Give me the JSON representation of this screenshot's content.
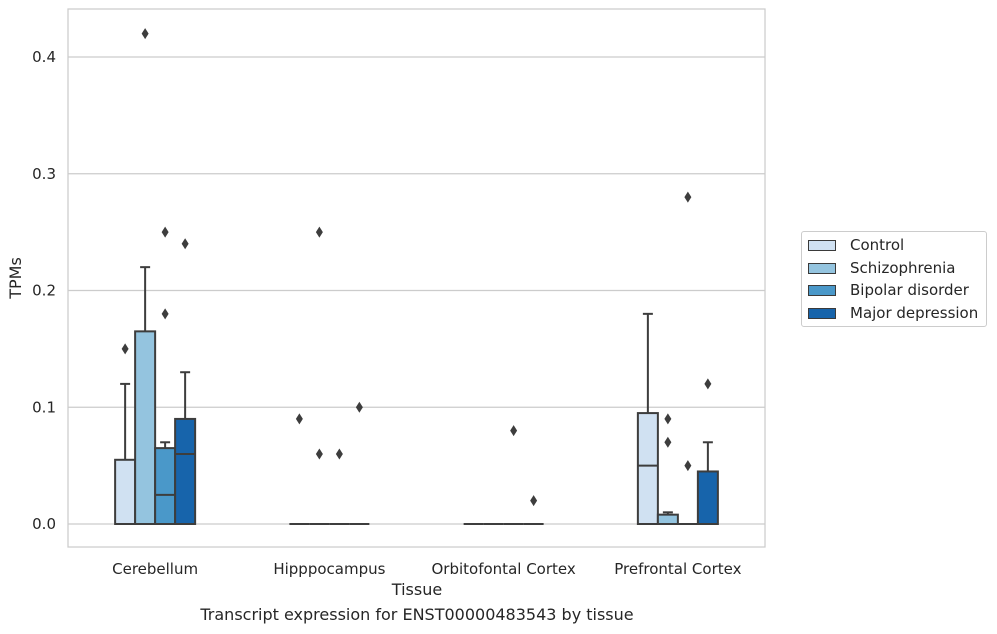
{
  "chart_data": {
    "type": "box",
    "title": "",
    "xlabel": "Tissue",
    "ylabel": "TPMs",
    "caption": "Transcript expression for ENST00000483543 by tissue",
    "categories": [
      "Cerebellum",
      "Hipppocampus",
      "Orbitofontal Cortex",
      "Prefrontal Cortex"
    ],
    "yticks": [
      "0.0",
      "0.1",
      "0.2",
      "0.3",
      "0.4"
    ],
    "ytick_values": [
      0.0,
      0.1,
      0.2,
      0.3,
      0.4
    ],
    "ylim": [
      -0.02,
      0.44
    ],
    "grid": "horizontal",
    "legend_position": "center-right",
    "series": [
      {
        "name": "Control",
        "color": "#d0e1f2",
        "boxes": [
          {
            "q1": 0.0,
            "median": 0.0,
            "q3": 0.055,
            "whisker_low": 0.0,
            "whisker_high": 0.12,
            "outliers": [
              0.15
            ]
          },
          {
            "q1": 0.0,
            "median": 0.0,
            "q3": 0.0,
            "whisker_low": 0.0,
            "whisker_high": 0.0,
            "outliers": [
              0.09
            ]
          },
          {
            "q1": 0.0,
            "median": 0.0,
            "q3": 0.0,
            "whisker_low": 0.0,
            "whisker_high": 0.0,
            "outliers": []
          },
          {
            "q1": 0.0,
            "median": 0.05,
            "q3": 0.095,
            "whisker_low": 0.0,
            "whisker_high": 0.18,
            "outliers": []
          }
        ]
      },
      {
        "name": "Schizophrenia",
        "color": "#94c4df",
        "boxes": [
          {
            "q1": 0.0,
            "median": 0.0,
            "q3": 0.165,
            "whisker_low": 0.0,
            "whisker_high": 0.22,
            "outliers": [
              0.42
            ]
          },
          {
            "q1": 0.0,
            "median": 0.0,
            "q3": 0.0,
            "whisker_low": 0.0,
            "whisker_high": 0.0,
            "outliers": [
              0.25,
              0.06
            ]
          },
          {
            "q1": 0.0,
            "median": 0.0,
            "q3": 0.0,
            "whisker_low": 0.0,
            "whisker_high": 0.0,
            "outliers": []
          },
          {
            "q1": 0.0,
            "median": 0.0,
            "q3": 0.008,
            "whisker_low": 0.0,
            "whisker_high": 0.01,
            "outliers": [
              0.09,
              0.07
            ]
          }
        ]
      },
      {
        "name": "Bipolar disorder",
        "color": "#4a98c9",
        "boxes": [
          {
            "q1": 0.0,
            "median": 0.025,
            "q3": 0.065,
            "whisker_low": 0.0,
            "whisker_high": 0.07,
            "outliers": [
              0.25,
              0.18
            ]
          },
          {
            "q1": 0.0,
            "median": 0.0,
            "q3": 0.0,
            "whisker_low": 0.0,
            "whisker_high": 0.0,
            "outliers": [
              0.06
            ]
          },
          {
            "q1": 0.0,
            "median": 0.0,
            "q3": 0.0,
            "whisker_low": 0.0,
            "whisker_high": 0.0,
            "outliers": [
              0.08
            ]
          },
          {
            "q1": 0.0,
            "median": 0.0,
            "q3": 0.0,
            "whisker_low": 0.0,
            "whisker_high": 0.0,
            "outliers": [
              0.28,
              0.05
            ]
          }
        ]
      },
      {
        "name": "Major depression",
        "color": "#1764ab",
        "boxes": [
          {
            "q1": 0.0,
            "median": 0.06,
            "q3": 0.09,
            "whisker_low": 0.0,
            "whisker_high": 0.13,
            "outliers": [
              0.24
            ]
          },
          {
            "q1": 0.0,
            "median": 0.0,
            "q3": 0.0,
            "whisker_low": 0.0,
            "whisker_high": 0.0,
            "outliers": [
              0.1
            ]
          },
          {
            "q1": 0.0,
            "median": 0.0,
            "q3": 0.0,
            "whisker_low": 0.0,
            "whisker_high": 0.0,
            "outliers": [
              0.02
            ]
          },
          {
            "q1": 0.0,
            "median": 0.0,
            "q3": 0.045,
            "whisker_low": 0.0,
            "whisker_high": 0.07,
            "outliers": [
              0.12
            ]
          }
        ]
      }
    ]
  }
}
